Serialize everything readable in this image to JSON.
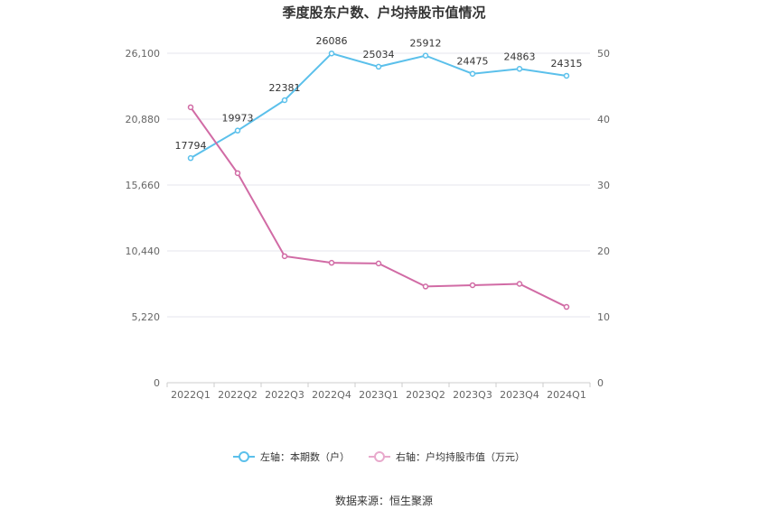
{
  "chart_data": {
    "type": "line",
    "title": "季度股东户数、户均持股市值情况",
    "categories": [
      "2022Q1",
      "2022Q2",
      "2022Q3",
      "2022Q4",
      "2023Q1",
      "2023Q2",
      "2023Q3",
      "2023Q4",
      "2024Q1"
    ],
    "series": [
      {
        "name": "左轴：本期数（户）",
        "axis": "left",
        "color": "#5bc0eb",
        "values": [
          17794,
          19973,
          22381,
          26086,
          25034,
          25912,
          24475,
          24863,
          24315
        ],
        "labels": [
          "17794",
          "19973",
          "22381",
          "26086",
          "25034",
          "25912",
          "24475",
          "24863",
          "24315"
        ]
      },
      {
        "name": "右轴：户均持股市值（万元）",
        "axis": "right",
        "color": "#d16ba5",
        "values": [
          41.8,
          31.8,
          19.2,
          18.2,
          18.1,
          14.6,
          14.8,
          15.0,
          11.5
        ]
      }
    ],
    "left_axis": {
      "min": 0,
      "max": 26100,
      "ticks": [
        "0",
        "5,220",
        "10,440",
        "15,660",
        "20,880",
        "26,100"
      ],
      "tick_values": [
        0,
        5220,
        10440,
        15660,
        20880,
        26100
      ]
    },
    "right_axis": {
      "min": 0,
      "max": 50,
      "ticks": [
        "0",
        "10",
        "20",
        "30",
        "40",
        "50"
      ],
      "tick_values": [
        0,
        10,
        20,
        30,
        40,
        50
      ]
    },
    "grid": true,
    "legend_position": "bottom"
  },
  "source": "数据来源：恒生聚源"
}
